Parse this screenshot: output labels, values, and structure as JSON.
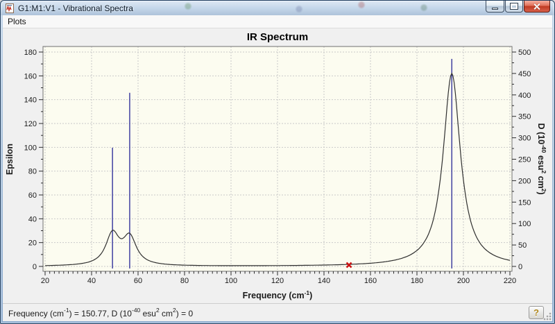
{
  "window": {
    "title": "G1:M1:V1 - Vibrational Spectra"
  },
  "menu": {
    "items": [
      {
        "label": "Plots"
      }
    ]
  },
  "status_bar": {
    "parts": [
      {
        "t": "Frequency (cm"
      },
      {
        "t": "-1",
        "sup": true
      },
      {
        "t": ") = 150.77, D (10"
      },
      {
        "t": "-40",
        "sup": true
      },
      {
        "t": " esu"
      },
      {
        "t": "2",
        "sup": true
      },
      {
        "t": " cm"
      },
      {
        "t": "2",
        "sup": true
      },
      {
        "t": ") = 0"
      }
    ],
    "help_glyph": "?"
  },
  "chart_data": {
    "type": "line",
    "title": "IR Spectrum",
    "plot_bg": "#fcfcf0",
    "frame_color": "#6f6f6f",
    "grid": {
      "show": true,
      "color": "#c9c9c9",
      "dash": "2,2"
    },
    "x_axis": {
      "label_parts": [
        {
          "t": "Frequency (cm"
        },
        {
          "t": "-1",
          "sup": true
        },
        {
          "t": ")"
        }
      ],
      "min": 20,
      "max": 220,
      "major_tick": 20,
      "minor_tick": 2,
      "tick_labels": [
        20,
        40,
        60,
        80,
        100,
        120,
        140,
        160,
        180,
        200,
        220
      ]
    },
    "left_axis": {
      "label": "Epsilon",
      "min": 0,
      "max": 180,
      "major_tick": 20,
      "minor_tick": 10,
      "tick_labels": [
        0,
        20,
        40,
        60,
        80,
        100,
        120,
        140,
        160,
        180
      ]
    },
    "right_axis": {
      "label_parts": [
        {
          "t": "D (10"
        },
        {
          "t": "-40",
          "sup": true
        },
        {
          "t": " esu"
        },
        {
          "t": "2",
          "sup": true
        },
        {
          "t": " cm"
        },
        {
          "t": "2",
          "sup": true
        },
        {
          "t": ")"
        }
      ],
      "min": 0,
      "max": 500,
      "major_tick": 50,
      "minor_tick": 25,
      "tick_labels": [
        0,
        50,
        100,
        150,
        200,
        250,
        300,
        350,
        400,
        450,
        500
      ]
    },
    "sticks": {
      "series_name": "dipole-strength-sticks",
      "color": "#33339b",
      "points": [
        {
          "frequency": 49.0,
          "D": 277
        },
        {
          "frequency": 56.4,
          "D": 405
        },
        {
          "frequency": 195.0,
          "D": 484
        }
      ]
    },
    "curve": {
      "series_name": "epsilon-broadened-spectrum",
      "color": "#2f2f2f",
      "lorentzians": [
        {
          "center": 49.0,
          "amplitude": 26,
          "hwhm": 3.5
        },
        {
          "center": 56.4,
          "amplitude": 23,
          "hwhm": 3.5
        },
        {
          "center": 195.0,
          "amplitude": 162,
          "hwhm": 4.5
        }
      ],
      "sample_step": 0.5,
      "visible_peaks_epsilon": [
        {
          "frequency": 49,
          "epsilon": 30
        },
        {
          "frequency": 56.4,
          "epsilon": 27
        },
        {
          "frequency": 195,
          "epsilon": 163
        }
      ]
    },
    "cursor_marker": {
      "frequency": 150.77,
      "value": 0,
      "color": "#cc1111"
    }
  }
}
